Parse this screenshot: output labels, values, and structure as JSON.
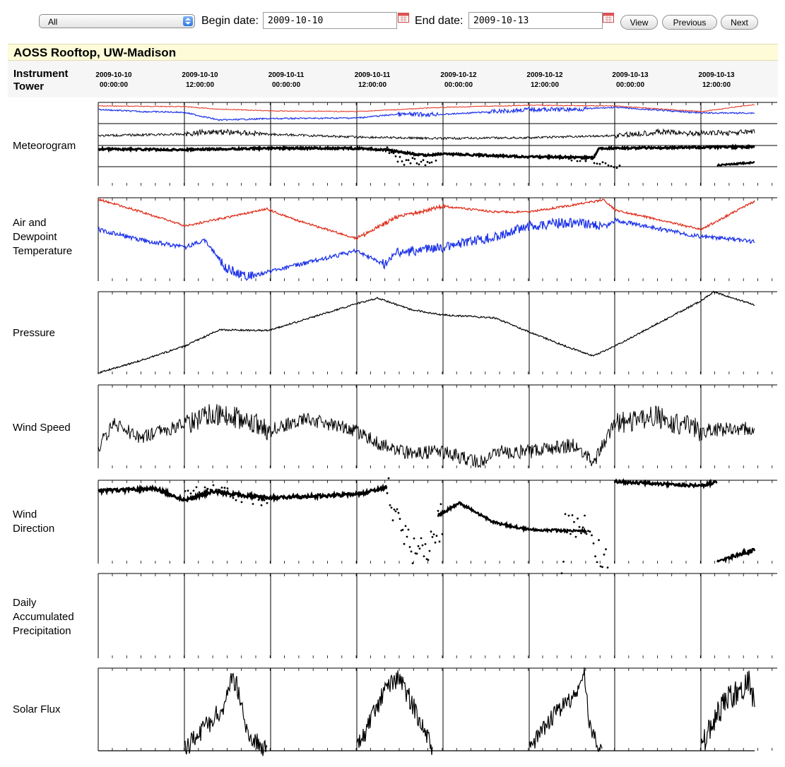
{
  "toolbar": {
    "select_value": "All",
    "begin_label": "Begin date:",
    "begin_value": "2009-10-10",
    "end_label": "End date:",
    "end_value": "2009-10-13",
    "view_label": "View",
    "previous_label": "Previous",
    "next_label": "Next"
  },
  "site": {
    "title": "AOSS Rooftop, UW-Madison"
  },
  "table": {
    "instrument_label": "Instrument\nTower",
    "times": [
      {
        "date": "2009-10-10",
        "time": "00:00:00"
      },
      {
        "date": "2009-10-10",
        "time": "12:00:00"
      },
      {
        "date": "2009-10-11",
        "time": "00:00:00"
      },
      {
        "date": "2009-10-11",
        "time": "12:00:00"
      },
      {
        "date": "2009-10-12",
        "time": "00:00:00"
      },
      {
        "date": "2009-10-12",
        "time": "12:00:00"
      },
      {
        "date": "2009-10-13",
        "time": "00:00:00"
      },
      {
        "date": "2009-10-13",
        "time": "12:00:00"
      }
    ]
  },
  "rows": [
    {
      "label": "Meteorogram"
    },
    {
      "label": "Air and\nDewpoint\nTemperature"
    },
    {
      "label": "Pressure"
    },
    {
      "label": "Wind Speed"
    },
    {
      "label": "Wind\nDirection"
    },
    {
      "label": "Daily\nAccumulated\nPrecipitation"
    },
    {
      "label": "Solar Flux"
    }
  ],
  "colors": {
    "air_temperature": "#e0301e",
    "dewpoint": "#1f34e8",
    "trace": "#000000",
    "header_bg": "#fdfbd8"
  },
  "icons": {
    "select_arrows": "updown-arrows-icon",
    "calendar": "calendar-icon"
  }
}
